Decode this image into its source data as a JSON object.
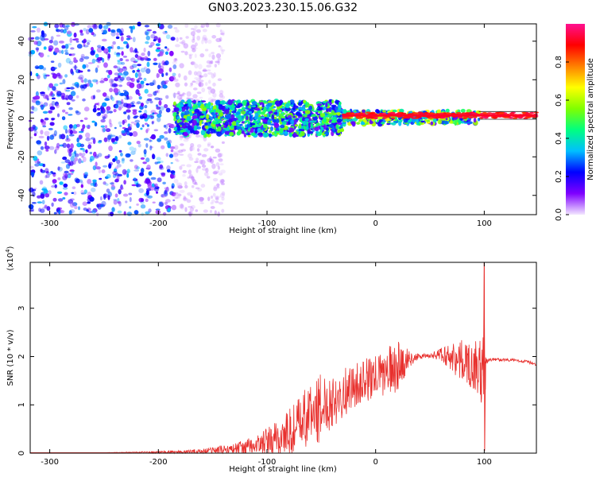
{
  "figure": {
    "title": "GN03.2023.230.15.06.G32"
  },
  "chart_data": [
    {
      "type": "heatmap",
      "title": "GN03.2023.230.15.06.G32",
      "xlabel": "Height of straight line (km)",
      "ylabel": "Frequency (Hz)",
      "xlim": [
        -318,
        148
      ],
      "ylim": [
        -50,
        49
      ],
      "x_ticks": [
        -300,
        -200,
        -100,
        0,
        100
      ],
      "x_tick_labels": [
        "-300",
        "-200",
        "-100",
        "0",
        "100"
      ],
      "y_ticks": [
        -40,
        -20,
        0,
        20,
        40
      ],
      "y_tick_labels": [
        "-40",
        "-20",
        "0",
        "20",
        "40"
      ],
      "grid": false,
      "colorbar": {
        "label": "Normalized spectral amplitude",
        "range": [
          0,
          1
        ],
        "ticks": [
          0.0,
          0.2,
          0.4,
          0.6,
          0.8
        ],
        "tick_labels": [
          "0.0",
          "0.2",
          "0.4",
          "0.6",
          "0.8"
        ],
        "colormap": "rainbow",
        "stops": [
          "#f2e6ff",
          "#7f00ff",
          "#0000ff",
          "#00bfff",
          "#00ff80",
          "#80ff00",
          "#ffff00",
          "#ff8000",
          "#ff0000",
          "#ff1090"
        ]
      },
      "regions": [
        {
          "x": [
            -318,
            -185
          ],
          "y": [
            -50,
            49
          ],
          "level": 0.2,
          "pattern": "scattered noise"
        },
        {
          "x": [
            -185,
            -140
          ],
          "y": [
            -50,
            49
          ],
          "level": 0.05,
          "pattern": "faint scattered noise"
        },
        {
          "x": [
            -185,
            -30
          ],
          "y": [
            -9,
            9
          ],
          "level": 0.35,
          "pattern": "dense band"
        },
        {
          "x": [
            -30,
            95
          ],
          "y": [
            -3,
            4
          ],
          "level": 0.4,
          "pattern": "narrow band"
        },
        {
          "x": [
            -30,
            148
          ],
          "y": [
            0,
            3
          ],
          "level": 0.9,
          "pattern": "carrier line"
        }
      ]
    },
    {
      "type": "line",
      "xlabel": "Height of straight line (km)",
      "ylabel": "SNR (10 * v/v)",
      "y_multiplier": "(x10",
      "y_multiplier_exponent": "4",
      "y_multiplier_close": ")",
      "xlim": [
        -318,
        148
      ],
      "ylim": [
        0,
        3.95
      ],
      "x_ticks": [
        -300,
        -200,
        -100,
        0,
        100
      ],
      "x_tick_labels": [
        "-300",
        "-200",
        "-100",
        "0",
        "100"
      ],
      "y_ticks": [
        0,
        1,
        2,
        3
      ],
      "y_tick_labels": [
        "0",
        "1",
        "2",
        "3"
      ],
      "grid": false,
      "series": [
        {
          "color": "#e8312e",
          "x": [
            -318,
            -250,
            -200,
            -170,
            -150,
            -130,
            -110,
            -100,
            -90,
            -80,
            -70,
            -60,
            -50,
            -40,
            -30,
            -20,
            -10,
            0,
            10,
            20,
            25,
            30,
            40,
            50,
            60,
            70,
            75,
            80,
            85,
            90,
            95,
            98,
            100,
            102,
            105,
            110,
            120,
            130,
            140,
            148
          ],
          "y": [
            0.01,
            0.01,
            0.02,
            0.03,
            0.05,
            0.09,
            0.16,
            0.22,
            0.3,
            0.42,
            0.6,
            0.8,
            0.95,
            1.12,
            1.25,
            1.38,
            1.5,
            1.58,
            1.68,
            1.8,
            1.88,
            1.95,
            2.0,
            2.02,
            2.04,
            2.0,
            1.95,
            1.9,
            1.85,
            1.8,
            1.75,
            1.6,
            1.4,
            1.9,
            1.93,
            1.94,
            1.93,
            1.92,
            1.89,
            1.84
          ],
          "noise_amplitude": [
            0.0,
            0.0,
            0.02,
            0.04,
            0.08,
            0.12,
            0.2,
            0.3,
            0.4,
            0.5,
            0.6,
            0.7,
            0.7,
            0.6,
            0.5,
            0.45,
            0.45,
            0.45,
            0.5,
            0.55,
            0.4,
            0.2,
            0.05,
            0.05,
            0.15,
            0.3,
            0.4,
            0.45,
            0.45,
            0.5,
            0.6,
            0.8,
            1.2,
            0.06,
            0.03,
            0.03,
            0.03,
            0.03,
            0.03,
            0.03
          ],
          "peak": {
            "x": 100,
            "y_max": 3.95,
            "y_min": 0.05
          }
        }
      ]
    }
  ]
}
